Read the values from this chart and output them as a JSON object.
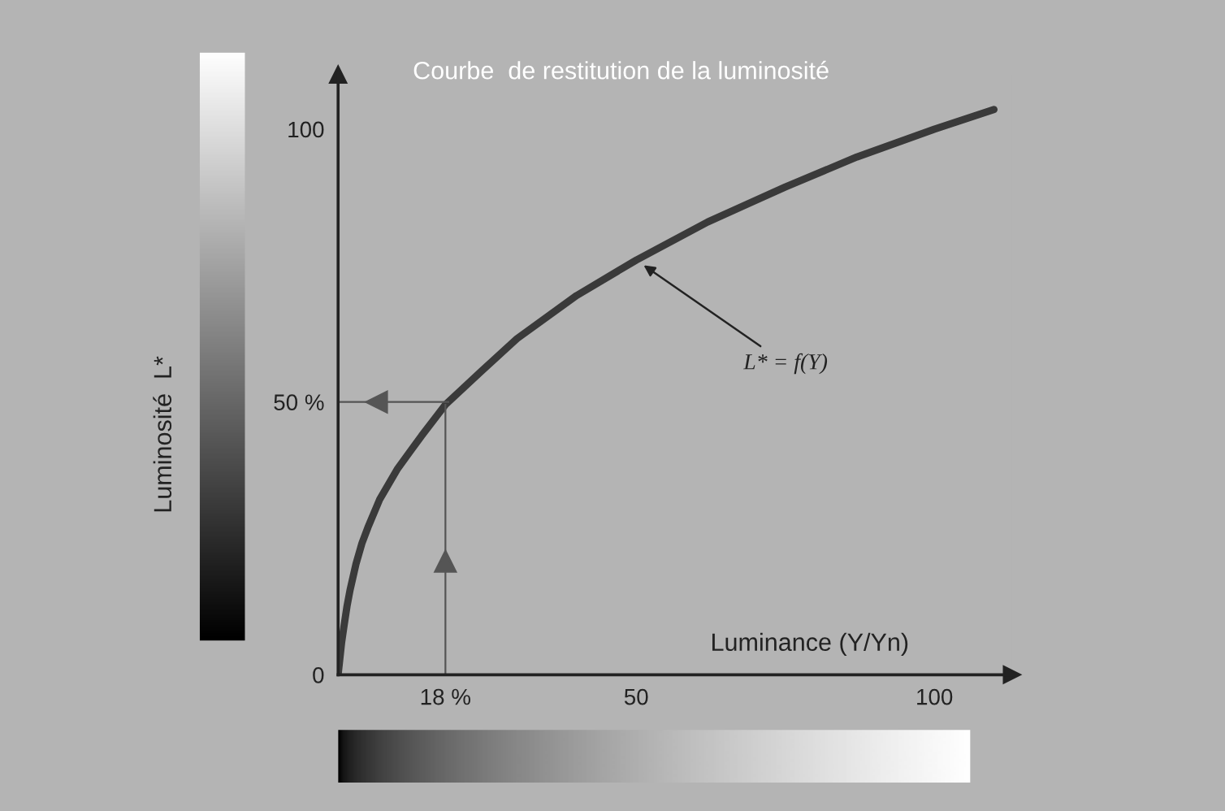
{
  "chart_data": {
    "type": "line",
    "title": "Courbe  de restitution de la luminosité",
    "xlabel": "Luminance (Y/Yn)",
    "ylabel": "Luminosité  L*",
    "x": [
      0,
      0.3,
      0.6,
      1,
      1.5,
      2,
      3,
      4,
      5,
      7,
      10,
      14,
      18,
      24,
      30,
      40,
      50,
      62,
      75,
      87,
      100,
      110
    ],
    "series": [
      {
        "color": "#3a3a3a",
        "values": [
          0,
          3,
          6,
          9,
          12.6,
          15.5,
          20.3,
          24.1,
          27,
          32.2,
          37.8,
          43.8,
          49.5,
          55.6,
          61.6,
          69.5,
          76,
          83,
          89.4,
          94.9,
          100,
          103.6
        ]
      }
    ],
    "xlim": [
      0,
      113
    ],
    "ylim": [
      0,
      110
    ],
    "xticks": [
      {
        "value": 18,
        "label": "18 %"
      },
      50,
      100
    ],
    "yticks": [
      0,
      {
        "value": 50,
        "label": "50 %"
      },
      100
    ],
    "ref_lines": [
      {
        "axis": "x",
        "value": 18,
        "color": "#555555"
      },
      {
        "axis": "y",
        "value": 50,
        "color": "#555555"
      }
    ],
    "annotations": [
      {
        "text": "L* = f(Y)",
        "x": 50,
        "y": 76
      }
    ],
    "legend": false,
    "marker": "none",
    "line_style": "solid"
  }
}
